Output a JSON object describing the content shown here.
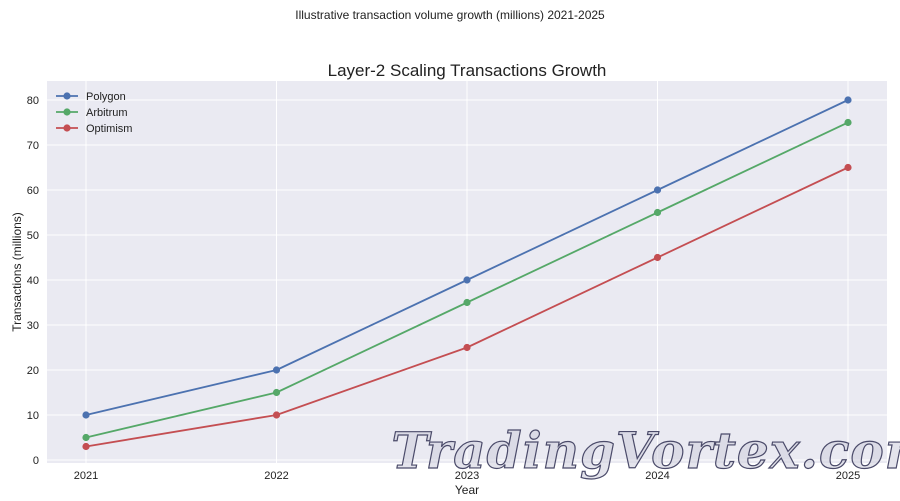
{
  "suptitle": "Illustrative transaction volume growth (millions) 2021-2025",
  "watermark": "TradingVortex.com",
  "chart_data": {
    "type": "line",
    "title": "Layer-2 Scaling Transactions Growth",
    "xlabel": "Year",
    "ylabel": "Transactions (millions)",
    "x": [
      "2021",
      "2022",
      "2023",
      "2024",
      "2025"
    ],
    "ylim": [
      0,
      83
    ],
    "yticks": [
      0,
      10,
      20,
      30,
      40,
      50,
      60,
      70,
      80
    ],
    "grid": true,
    "legend_position": "top-left",
    "series": [
      {
        "name": "Polygon",
        "color": "#4c72b0",
        "values": [
          10,
          20,
          40,
          60,
          80
        ]
      },
      {
        "name": "Arbitrum",
        "color": "#55a868",
        "values": [
          5,
          15,
          35,
          55,
          75
        ]
      },
      {
        "name": "Optimism",
        "color": "#c44e52",
        "values": [
          3,
          10,
          25,
          45,
          65
        ]
      }
    ]
  }
}
